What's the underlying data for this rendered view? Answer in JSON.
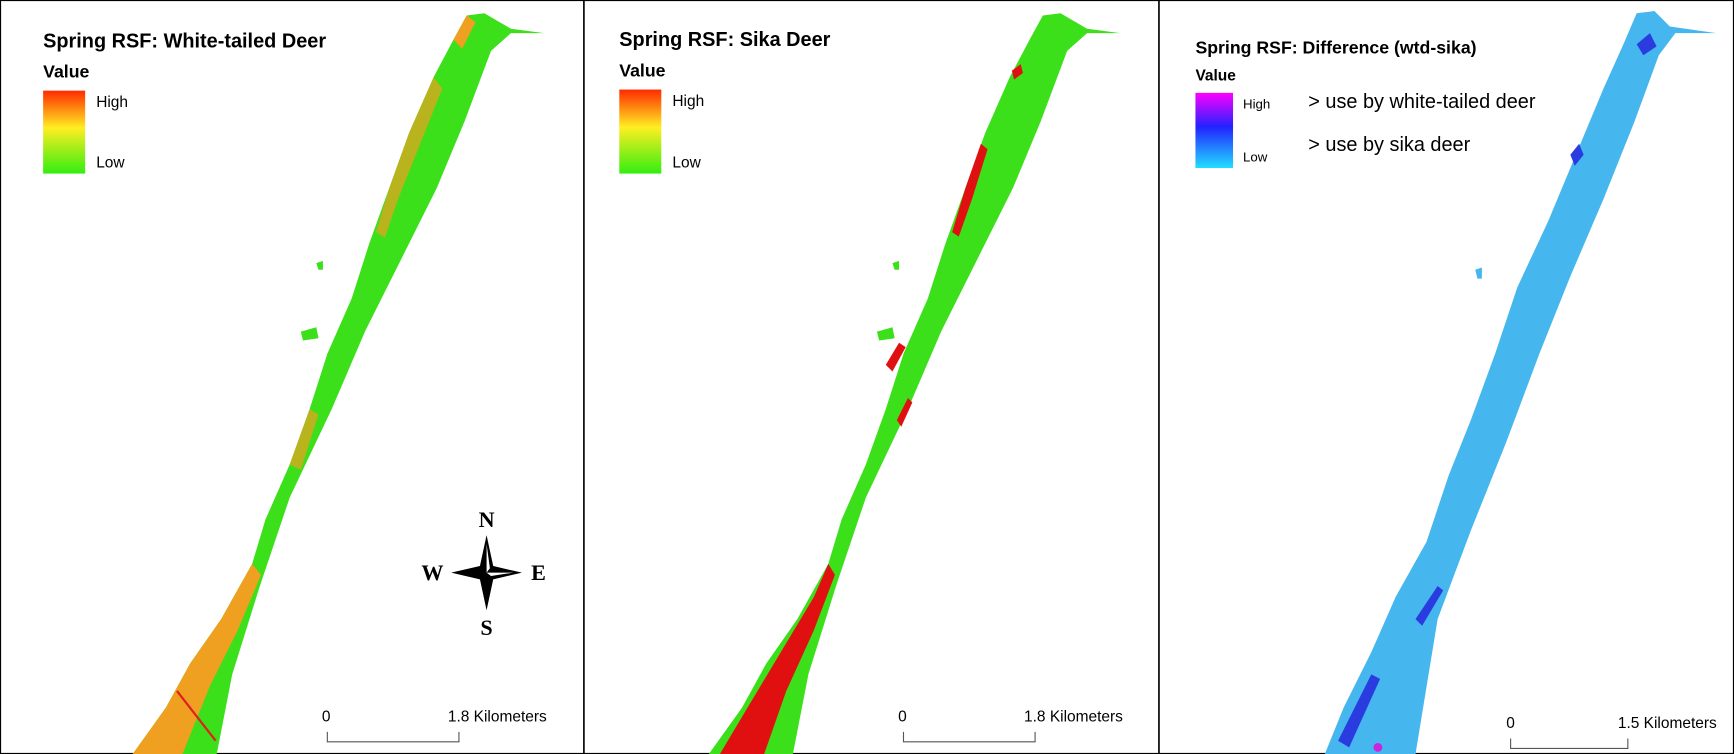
{
  "panels": [
    {
      "title": "Spring RSF: White-tailed Deer",
      "legend": {
        "title": "Value",
        "high": "High",
        "low": "Low"
      },
      "scale_bar": {
        "start": "0",
        "end": "1.8 Kilometers"
      }
    },
    {
      "title": "Spring RSF: Sika Deer",
      "legend": {
        "title": "Value",
        "high": "High",
        "low": "Low"
      },
      "scale_bar": {
        "start": "0",
        "end": "1.8 Kilometers"
      }
    },
    {
      "title": "Spring RSF: Difference (wtd-sika)",
      "legend": {
        "title": "Value",
        "high": "High",
        "low": "Low"
      },
      "notes": [
        "> use by white-tailed deer",
        "> use by sika deer"
      ],
      "scale_bar": {
        "start": "0",
        "end": "1.5 Kilometers"
      }
    }
  ],
  "compass": {
    "north": "N",
    "west": "W",
    "east": "E",
    "south": "S"
  }
}
